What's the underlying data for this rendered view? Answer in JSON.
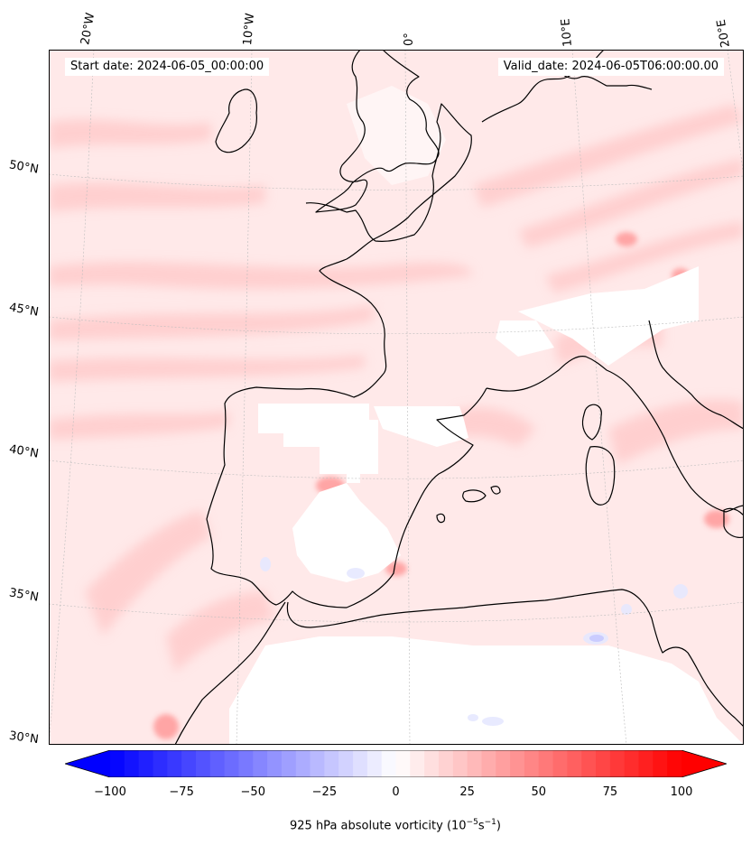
{
  "map": {
    "start_date_label": "Start date: 2024-06-05_00:00:00",
    "valid_date_label": "Valid_date: 2024-06-05T06:00:00.00",
    "lon_ticks": [
      "20°W",
      "10°W",
      "0°",
      "10°E",
      "20°E"
    ],
    "lat_ticks": [
      "50°N",
      "45°N",
      "40°N",
      "35°N",
      "30°N"
    ],
    "colors": {
      "coastline": "#000000",
      "gridline": "#bdbdbd",
      "positive_tint": "#ffd6d6",
      "land_white": "#ffffff"
    }
  },
  "colorbar": {
    "label_prefix": "925 hPa absolute vorticity (10",
    "label_exp1": "−5",
    "label_mid": "s",
    "label_exp2": "−1",
    "label_suffix": ")",
    "min": -100,
    "max": 100,
    "tick_values": [
      -100,
      -75,
      -50,
      -25,
      0,
      25,
      50,
      75,
      100
    ],
    "tick_labels": [
      "−100",
      "−75",
      "−50",
      "−25",
      "0",
      "25",
      "50",
      "75",
      "100"
    ],
    "extend": "both",
    "colormap": "bwr",
    "levels": 40
  }
}
